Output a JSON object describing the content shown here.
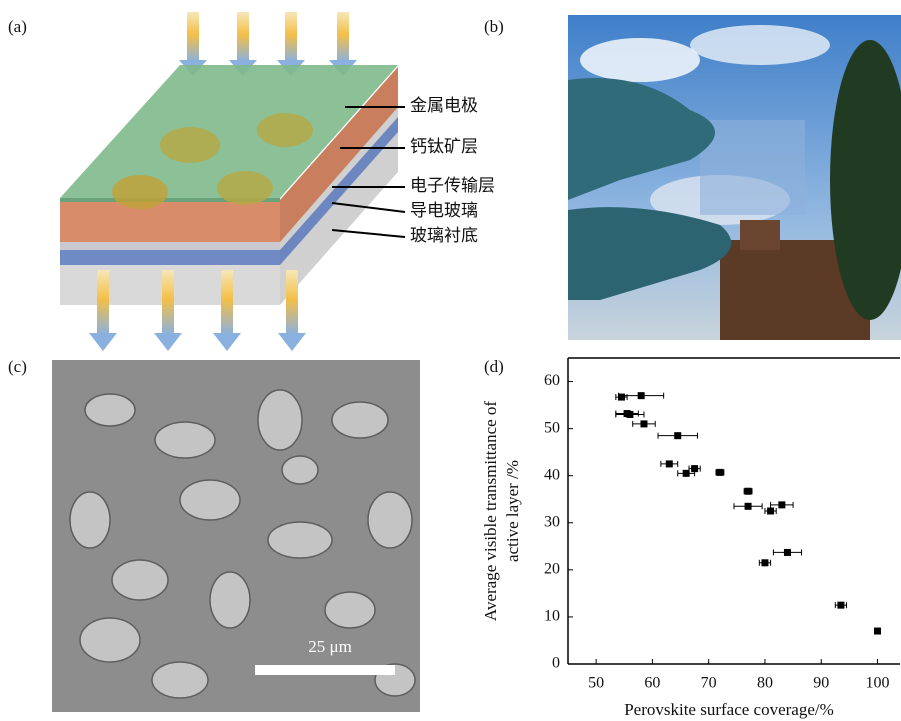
{
  "panels": {
    "a": "(a)",
    "b": "(b)",
    "c": "(c)",
    "d": "(d)"
  },
  "diagram": {
    "layers": [
      "金属电极",
      "钙钛矿层",
      "电子传输层",
      "导电玻璃",
      "玻璃衬底"
    ]
  },
  "micrograph": {
    "scale_label": "25 μm"
  },
  "chart_data": {
    "type": "scatter",
    "y_label": [
      "Average visible transmittance of",
      "active layer /%"
    ],
    "x_label": "Perovskite surface coverage/%",
    "x": [
      54.5,
      58,
      55.5,
      56,
      58.5,
      64.5,
      63,
      66,
      67.5,
      72,
      77,
      77,
      81,
      83,
      84,
      80,
      93.5,
      100
    ],
    "series": [
      {
        "color": "#000000",
        "values": [
          56.7,
          57,
          53.2,
          53,
          51,
          48.5,
          42.5,
          40.5,
          41.5,
          40.7,
          36.7,
          33.5,
          32.5,
          33.8,
          23.7,
          21.5,
          12.5,
          7
        ],
        "xerr": [
          1,
          4,
          2,
          2.5,
          2,
          3.5,
          1.5,
          1.5,
          1,
          0.7,
          0.7,
          2.5,
          1,
          2,
          2.5,
          1,
          1,
          0.5
        ],
        "yerr": [
          0.7,
          0.7,
          0.7,
          0.7,
          0.7,
          0.7,
          0.7,
          0.7,
          0.7,
          0.7,
          0.7,
          0.7,
          0.7,
          0.7,
          0.7,
          0.7,
          0.7,
          0.7
        ]
      }
    ],
    "xlim": [
      45,
      104
    ],
    "ylim": [
      0,
      65
    ],
    "xticks": [
      50,
      60,
      70,
      80,
      90,
      100
    ],
    "yticks": [
      0,
      10,
      20,
      30,
      40,
      50,
      60
    ]
  }
}
